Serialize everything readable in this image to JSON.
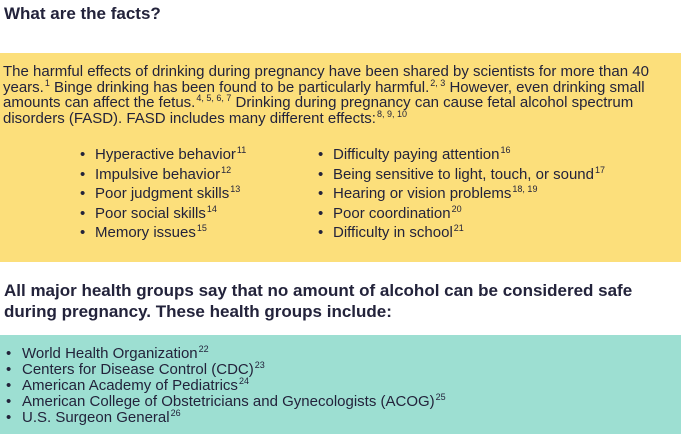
{
  "heading": "What are the facts?",
  "intro": {
    "segments": [
      {
        "text": "The harmful effects of drinking during pregnancy have been shared by scientists for more than 40 years.",
        "sup": "1"
      },
      {
        "text": "Binge drinking has been found to be particularly harmful.",
        "sup": "2, 3"
      },
      {
        "text": "However, even drinking small amounts can affect the fetus.",
        "sup": "4, 5, 6, 7"
      },
      {
        "text": "Drinking during pregnancy can cause fetal alcohol spectrum disorders (FASD). FASD includes many different effects:",
        "sup": "8, 9, 10"
      }
    ]
  },
  "effects": {
    "left": [
      {
        "text": "Hyperactive behavior",
        "sup": "11"
      },
      {
        "text": "Impulsive behavior",
        "sup": "12"
      },
      {
        "text": "Poor judgment skills",
        "sup": "13"
      },
      {
        "text": "Poor social skills",
        "sup": "14"
      },
      {
        "text": "Memory issues",
        "sup": "15"
      }
    ],
    "right": [
      {
        "text": "Difficulty paying attention",
        "sup": "16"
      },
      {
        "text": "Being sensitive to light, touch, or sound",
        "sup": "17"
      },
      {
        "text": "Hearing or vision problems",
        "sup": "18, 19"
      },
      {
        "text": "Poor coordination",
        "sup": "20"
      },
      {
        "text": "Difficulty in school",
        "sup": "21"
      }
    ]
  },
  "groups_intro": "All major health groups say that no amount of alcohol can be considered safe during pregnancy. These health groups include:",
  "groups": [
    {
      "text": "World Health Organization",
      "sup": "22"
    },
    {
      "text": "Centers for Disease Control (CDC)",
      "sup": "23"
    },
    {
      "text": "American Academy of Pediatrics",
      "sup": "24"
    },
    {
      "text": "American College of Obstetricians and Gynecologists (ACOG)",
      "sup": "25"
    },
    {
      "text": "U.S. Surgeon General",
      "sup": "26"
    }
  ]
}
